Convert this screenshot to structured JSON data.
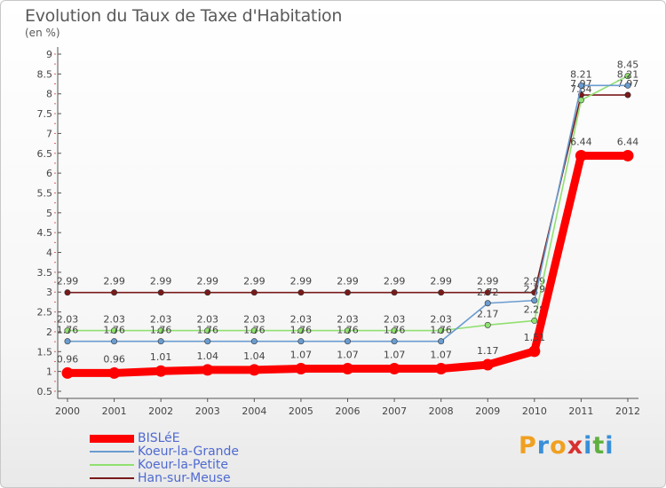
{
  "title": "Evolution du Taux de Taxe d'Habitation",
  "subtitle": "(en %)",
  "logo": {
    "text": "Proxiti",
    "letters": [
      "P",
      "r",
      "o",
      "x",
      "i",
      "t",
      "i"
    ],
    "colors": [
      "#f0a020",
      "#3a8fd8",
      "#f0a020",
      "#d83030",
      "#3a8fd8",
      "#60b040",
      "#3a8fd8"
    ]
  },
  "chart_data": {
    "type": "line",
    "title": "Evolution du Taux de Taxe d'Habitation",
    "ylabel": "(en %)",
    "xlabel": "",
    "categories": [
      "2000",
      "2001",
      "2002",
      "2003",
      "2004",
      "2005",
      "2006",
      "2007",
      "2008",
      "2009",
      "2010",
      "2011",
      "2012"
    ],
    "ylim": [
      0.5,
      9
    ],
    "yticks": [
      "0.5",
      "1",
      "1.5",
      "2",
      "2.5",
      "3",
      "3.5",
      "4",
      "4.5",
      "5",
      "5.5",
      "6",
      "6.5",
      "7",
      "7.5",
      "8",
      "8.5",
      "9"
    ],
    "grid": false,
    "legend_position": "bottom-left",
    "series": [
      {
        "name": "BISLéE",
        "color": "#ff0000",
        "values": [
          0.96,
          0.96,
          1.01,
          1.04,
          1.04,
          1.07,
          1.07,
          1.07,
          1.07,
          1.17,
          1.51,
          6.44,
          6.44
        ],
        "labels": [
          "0.96",
          "0.96",
          "1.01",
          "1.04",
          "1.04",
          "1.07",
          "1.07",
          "1.07",
          "1.07",
          "1.17",
          "1.51",
          "6.44",
          "6.44"
        ]
      },
      {
        "name": "Koeur-la-Grande",
        "color": "#6a9cd0",
        "values": [
          1.76,
          1.76,
          1.76,
          1.76,
          1.76,
          1.76,
          1.76,
          1.76,
          1.76,
          2.72,
          2.79,
          8.21,
          8.21
        ],
        "labels": [
          "1.76",
          "1.76",
          "1.76",
          "1.76",
          "1.76",
          "1.76",
          "1.76",
          "1.76",
          "1.76",
          "2.72",
          "2.79",
          "8.21",
          "8.21"
        ]
      },
      {
        "name": "Koeur-la-Petite",
        "color": "#90e070",
        "values": [
          2.03,
          2.03,
          2.03,
          2.03,
          2.03,
          2.03,
          2.03,
          2.03,
          2.03,
          2.17,
          2.28,
          7.84,
          8.45
        ],
        "labels": [
          "2.03",
          "2.03",
          "2.03",
          "2.03",
          "2.03",
          "2.03",
          "2.03",
          "2.03",
          "2.03",
          "2.17",
          "2.28",
          "7.84",
          "8.45"
        ]
      },
      {
        "name": "Han-sur-Meuse",
        "color": "#7a1a1a",
        "values": [
          2.99,
          2.99,
          2.99,
          2.99,
          2.99,
          2.99,
          2.99,
          2.99,
          2.99,
          2.99,
          2.99,
          7.97,
          7.97
        ],
        "labels": [
          "2.99",
          "2.99",
          "2.99",
          "2.99",
          "2.99",
          "2.99",
          "2.99",
          "2.99",
          "2.99",
          "2.99",
          "2.99",
          "7.97",
          "7.97"
        ]
      }
    ]
  }
}
